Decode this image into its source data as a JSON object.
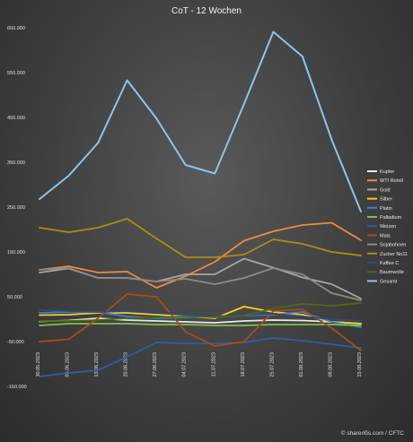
{
  "chart_data": {
    "type": "line",
    "title": "CoT - 12 Wochen",
    "source": "© sharerібs.com / CFTC",
    "x": [
      "30.05.2023",
      "06.06.2023",
      "13.06.2023",
      "20.06.2023",
      "27.06.2023",
      "04.07.2023",
      "11.07.2023",
      "18.07.2023",
      "25.07.2023",
      "01.08.2023",
      "08.08.2023",
      "15.08.2023"
    ],
    "y_ticks": [
      "650.000",
      "550.000",
      "450.000",
      "350.000",
      "250.000",
      "150.000",
      "50.000",
      "-50.000",
      "-150.000"
    ],
    "ylim": [
      -150000,
      650000
    ],
    "grid": false,
    "legend": "right",
    "series": [
      {
        "name": "Kupfer",
        "color": "#e8e8e8",
        "values": [
          -5000,
          -3000,
          2000,
          -2000,
          -4000,
          -6000,
          -8000,
          -4000,
          -2000,
          -3000,
          -6000,
          -10000
        ]
      },
      {
        "name": "WTI Rohöl",
        "color": "#ef8a3c",
        "values": [
          110000,
          118000,
          104000,
          106000,
          70000,
          96000,
          128000,
          175000,
          196000,
          210000,
          215000,
          176000
        ]
      },
      {
        "name": "Gold",
        "color": "#a6a6a6",
        "values": [
          104000,
          113000,
          92000,
          92000,
          84000,
          100000,
          100000,
          135000,
          115000,
          93000,
          78000,
          46000
        ]
      },
      {
        "name": "Silber",
        "color": "#ffcc1a",
        "values": [
          9000,
          10000,
          14000,
          14000,
          10000,
          6000,
          2000,
          28000,
          16000,
          10000,
          -6000,
          -10000
        ]
      },
      {
        "name": "Platin",
        "color": "#3f7fd0",
        "values": [
          14000,
          16000,
          16000,
          6000,
          2000,
          4000,
          6000,
          8000,
          10000,
          16000,
          -6000,
          -18000
        ]
      },
      {
        "name": "Palladium",
        "color": "#7cc24a",
        "values": [
          -14000,
          -10000,
          -10000,
          -10000,
          -12000,
          -12000,
          -14000,
          -14000,
          -12000,
          -12000,
          -12000,
          -14000
        ]
      },
      {
        "name": "Weizen",
        "color": "#2a5fa8",
        "values": [
          -128000,
          -120000,
          -114000,
          -84000,
          -52000,
          -54000,
          -54000,
          -52000,
          -42000,
          -48000,
          -56000,
          -64000
        ]
      },
      {
        "name": "Mais",
        "color": "#a84c18",
        "values": [
          -50000,
          -45000,
          2000,
          56000,
          50000,
          -28000,
          -60000,
          -50000,
          18000,
          22000,
          -20000,
          -70000
        ]
      },
      {
        "name": "Sojabohnen",
        "color": "#8a8a8a",
        "values": [
          110000,
          114000,
          92000,
          92000,
          84000,
          90000,
          78000,
          92000,
          114000,
          100000,
          58000,
          42000
        ]
      },
      {
        "name": "Zucker No11",
        "color": "#b08a14",
        "values": [
          204000,
          194000,
          204000,
          224000,
          180000,
          138000,
          138000,
          144000,
          178000,
          168000,
          150000,
          142000
        ]
      },
      {
        "name": "Kaffee C",
        "color": "#2b4a80",
        "values": [
          20000,
          18000,
          16000,
          18000,
          14000,
          12000,
          6000,
          10000,
          12000,
          6000,
          0,
          -4000
        ]
      },
      {
        "name": "Baumwolle",
        "color": "#4a6a1a",
        "values": [
          -4000,
          -4000,
          -2000,
          2000,
          4000,
          6000,
          4000,
          8000,
          24000,
          34000,
          30000,
          36000
        ]
      },
      {
        "name": "Gesamt",
        "color": "#8ec3ee",
        "values": [
          268000,
          320000,
          393000,
          533000,
          448000,
          344000,
          325000,
          480000,
          641000,
          586000,
          400000,
          240000
        ]
      }
    ]
  }
}
